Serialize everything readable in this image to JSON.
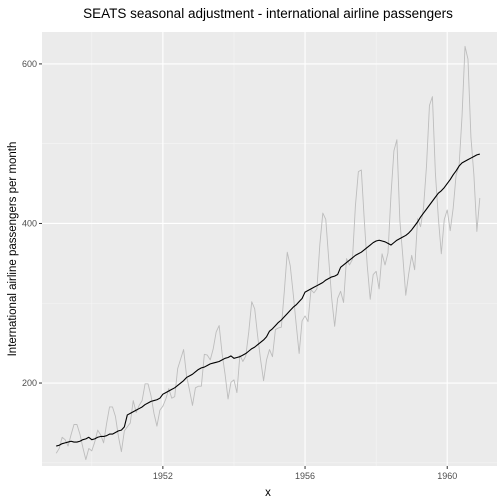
{
  "chart_data": {
    "type": "line",
    "title": "SEATS seasonal adjustment - international airline passengers",
    "xlabel": "x",
    "ylabel": "International airline passengers per month",
    "xlim": [
      1948.6,
      1961.4
    ],
    "ylim": [
      96,
      640
    ],
    "x_ticks": [
      1952,
      1956,
      1960
    ],
    "x_tick_labels": [
      "1952",
      "1956",
      "1960"
    ],
    "y_ticks": [
      200,
      400,
      600
    ],
    "y_tick_labels": [
      "200",
      "400",
      "600"
    ],
    "grid": true,
    "legend": "none",
    "x_start": 1949,
    "x_step": 0.0833333,
    "series": [
      {
        "role": "original",
        "color": "#bdbdbd",
        "values": [
          112,
          118,
          132,
          129,
          121,
          135,
          148,
          148,
          136,
          119,
          104,
          118,
          115,
          126,
          141,
          135,
          125,
          149,
          170,
          170,
          158,
          133,
          114,
          140,
          145,
          150,
          178,
          163,
          172,
          178,
          199,
          199,
          184,
          162,
          146,
          166,
          171,
          180,
          193,
          181,
          183,
          218,
          230,
          242,
          209,
          191,
          172,
          194,
          196,
          196,
          236,
          235,
          229,
          243,
          264,
          272,
          237,
          211,
          180,
          201,
          204,
          188,
          235,
          227,
          234,
          264,
          302,
          293,
          259,
          229,
          203,
          229,
          242,
          233,
          267,
          269,
          270,
          315,
          364,
          347,
          312,
          274,
          237,
          278,
          284,
          277,
          317,
          313,
          318,
          374,
          413,
          405,
          355,
          306,
          271,
          306,
          315,
          301,
          356,
          348,
          355,
          422,
          465,
          467,
          404,
          347,
          305,
          336,
          340,
          318,
          362,
          348,
          363,
          435,
          491,
          505,
          404,
          359,
          310,
          337,
          360,
          342,
          406,
          396,
          420,
          472,
          548,
          559,
          463,
          407,
          362,
          405,
          417,
          391,
          419,
          461,
          472,
          535,
          622,
          606,
          508,
          461,
          390,
          432
        ]
      },
      {
        "role": "seasonally-adjusted",
        "color": "#000000",
        "values": [
          121,
          122,
          124,
          125,
          126,
          127,
          126,
          126,
          127,
          129,
          130,
          132,
          129,
          130,
          132,
          133,
          133,
          134,
          136,
          136,
          138,
          140,
          141,
          145,
          160,
          162,
          164,
          166,
          168,
          170,
          173,
          175,
          177,
          178,
          179,
          181,
          186,
          188,
          190,
          192,
          194,
          197,
          200,
          203,
          207,
          209,
          211,
          214,
          217,
          219,
          220,
          222,
          224,
          225,
          226,
          227,
          229,
          231,
          232,
          234,
          231,
          232,
          233,
          235,
          237,
          240,
          243,
          245,
          248,
          251,
          254,
          258,
          265,
          268,
          272,
          276,
          279,
          283,
          287,
          291,
          295,
          298,
          302,
          306,
          314,
          316,
          318,
          320,
          322,
          324,
          326,
          329,
          331,
          333,
          334,
          336,
          345,
          348,
          351,
          354,
          357,
          360,
          362,
          364,
          367,
          370,
          373,
          376,
          378,
          379,
          378,
          377,
          375,
          373,
          376,
          379,
          381,
          383,
          385,
          388,
          392,
          397,
          402,
          408,
          413,
          418,
          423,
          428,
          433,
          438,
          441,
          445,
          450,
          455,
          461,
          466,
          472,
          476,
          478,
          480,
          482,
          484,
          486,
          487
        ]
      }
    ]
  }
}
